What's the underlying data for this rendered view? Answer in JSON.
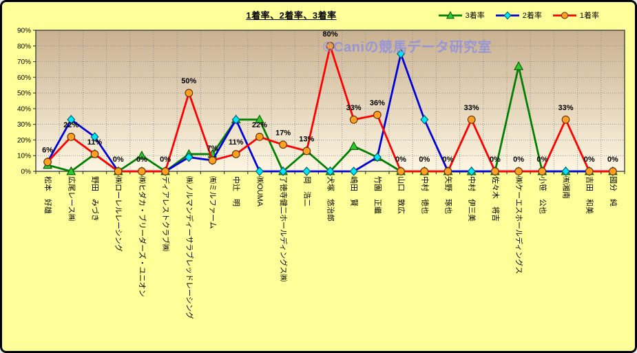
{
  "window": {
    "background": "#ffff99",
    "border_color": "#000000"
  },
  "title": {
    "text": "1着率、2着率、3着率"
  },
  "watermark": {
    "text": "©Caniの競馬データ研究室",
    "color": "#9494dc"
  },
  "legend": {
    "position": "top-right",
    "items": [
      "3着率",
      "2着率",
      "1着率"
    ]
  },
  "chart_data": {
    "type": "line",
    "title": "1着率、2着率、3着率",
    "categories": [
      "松本　好雄",
      "広尾レース㈱",
      "野田　みづき",
      "㈱ローレルレーシング",
      "㈱ヒダカ・ブリーダーズ・ユニオン",
      "ディアレストクラブ㈱",
      "㈱ノルマンディーサラブレッドレーシング",
      "㈲ミルファーム",
      "中辻　明",
      "㈱OUMA",
      "了徳寺健二ホールディングス㈱",
      "岡　浩二",
      "犬塚　悠治郎",
      "嶋田　賢",
      "竹園　正繼",
      "山口　敦広",
      "中村　徳也",
      "矢野　琢也",
      "中村　伊三美",
      "佐々木　将吉",
      "㈱ケーエスホールディングス",
      "小笹　公也",
      "㈲湘南",
      "吉田　和美",
      "國分　純"
    ],
    "series": [
      {
        "name": "3着率",
        "line_color": "#008000",
        "marker": "triangle",
        "marker_fill": "#30c830",
        "marker_edge": "#005a00",
        "values": [
          4,
          0,
          11,
          0,
          10,
          0,
          11,
          11,
          33,
          33,
          0,
          13,
          0,
          16,
          9,
          0,
          0,
          0,
          0,
          0,
          67,
          0,
          0,
          0,
          0
        ]
      },
      {
        "name": "2着率",
        "line_color": "#0000d8",
        "marker": "diamond",
        "marker_fill": "#00e5ff",
        "marker_edge": "#00585e",
        "values": [
          6,
          33,
          22,
          0,
          0,
          0,
          9,
          7,
          33,
          0,
          0,
          0,
          0,
          0,
          9,
          75,
          33,
          0,
          0,
          0,
          0,
          0,
          0,
          0,
          0
        ]
      },
      {
        "name": "1着率",
        "line_color": "#ff0000",
        "marker": "circle",
        "marker_fill": "#ffa023",
        "marker_edge": "#5a2d00",
        "data_labels": true,
        "labels": [
          "6%",
          "22%",
          "11%",
          "0%",
          "0%",
          "0%",
          "50%",
          "7%",
          "11%",
          "22%",
          "17%",
          "13%",
          "80%",
          "33%",
          "36%",
          "0%",
          "0%",
          "0%",
          "33%",
          "0%",
          "0%",
          "0%",
          "33%",
          "0%",
          "0%"
        ],
        "values": [
          6,
          22,
          11,
          0,
          0,
          0,
          50,
          7,
          11,
          22,
          17,
          13,
          80,
          33,
          36,
          0,
          0,
          0,
          33,
          0,
          0,
          0,
          33,
          0,
          0
        ]
      }
    ],
    "ylim": [
      0,
      90
    ],
    "ytick_step": 10,
    "ytick_labels": [
      "0%",
      "10%",
      "20%",
      "30%",
      "40%",
      "50%",
      "60%",
      "70%",
      "80%",
      "90%"
    ],
    "grid": true,
    "legend_position": "top-right",
    "plot_gradient_top": "#c9b190",
    "plot_gradient_bottom": "#fdf6e2",
    "gridline_color": "#8f8f8f",
    "axis_color": "#3f3f3f",
    "label_color": "#000000"
  }
}
